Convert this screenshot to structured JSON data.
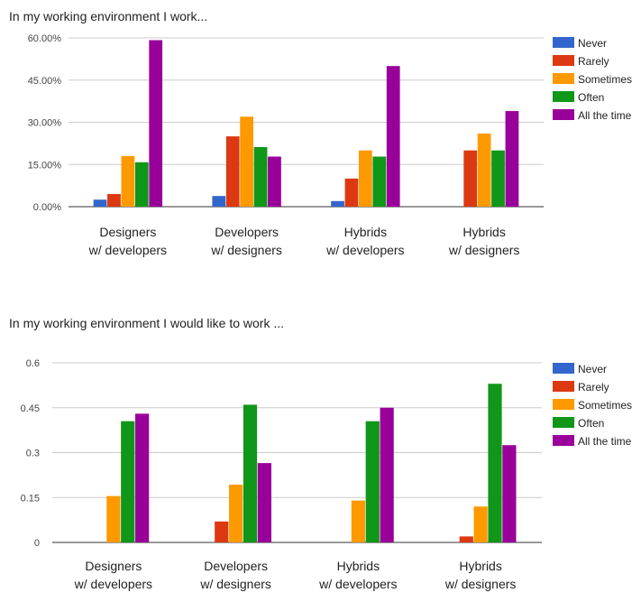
{
  "legend": [
    "Never",
    "Rarely",
    "Sometimes",
    "Often",
    "All the time"
  ],
  "colors": {
    "Never": "#3366cc",
    "Rarely": "#dc3912",
    "Sometimes": "#ff9900",
    "Often": "#109618",
    "All the time": "#990099"
  },
  "chart_data": [
    {
      "type": "bar",
      "title": "In my working environment I work...",
      "categories": [
        [
          "Designers",
          "w/ developers"
        ],
        [
          "Developers",
          "w/ designers"
        ],
        [
          "Hybrids",
          "w/ developers"
        ],
        [
          "Hybrids",
          "w/ designers"
        ]
      ],
      "series": [
        {
          "name": "Never",
          "values": [
            2.5,
            3.8,
            2.0,
            0
          ]
        },
        {
          "name": "Rarely",
          "values": [
            4.5,
            25.0,
            10.0,
            20.0
          ]
        },
        {
          "name": "Sometimes",
          "values": [
            18.0,
            32.0,
            20.0,
            26.0
          ]
        },
        {
          "name": "Often",
          "values": [
            15.8,
            21.2,
            17.8,
            20.0
          ]
        },
        {
          "name": "All the time",
          "values": [
            59.2,
            17.8,
            50.0,
            34.0
          ]
        }
      ],
      "yticks": [
        "0.00%",
        "15.00%",
        "30.00%",
        "45.00%",
        "60.00%"
      ],
      "ylim": [
        0,
        60
      ],
      "grid": true,
      "legend_position": "right"
    },
    {
      "type": "bar",
      "title": "In my working environment I would like to work ...",
      "categories": [
        [
          "Designers",
          "w/ developers"
        ],
        [
          "Developers",
          "w/ designers"
        ],
        [
          "Hybrids",
          "w/ developers"
        ],
        [
          "Hybrids",
          "w/ designers"
        ]
      ],
      "series": [
        {
          "name": "Never",
          "values": [
            0,
            0,
            0,
            0
          ]
        },
        {
          "name": "Rarely",
          "values": [
            0,
            0.07,
            0,
            0.02
          ]
        },
        {
          "name": "Sometimes",
          "values": [
            0.155,
            0.193,
            0.14,
            0.12
          ]
        },
        {
          "name": "Often",
          "values": [
            0.405,
            0.46,
            0.405,
            0.53
          ]
        },
        {
          "name": "All the time",
          "values": [
            0.43,
            0.265,
            0.45,
            0.325
          ]
        }
      ],
      "yticks": [
        "0",
        "0.15",
        "0.3",
        "0.45",
        "0.6"
      ],
      "ylim": [
        0,
        0.6
      ],
      "grid": true,
      "legend_position": "right"
    }
  ]
}
